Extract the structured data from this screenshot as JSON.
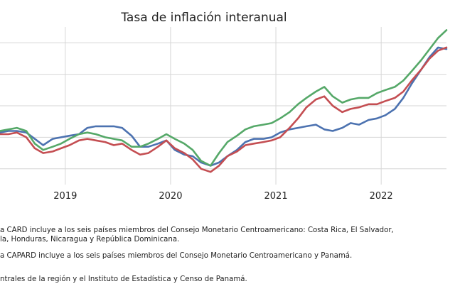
{
  "chart_data": {
    "type": "line",
    "title": "Tasa de inflación interanual",
    "xlabel": "",
    "ylabel": "",
    "x_ticks": [
      "2019",
      "2020",
      "2021",
      "2022"
    ],
    "x_range": [
      2018.38,
      2022.62
    ],
    "ylim": [
      -1,
      9
    ],
    "grid": true,
    "series": [
      {
        "color": "#4c72b0",
        "x": [
          2018.38,
          2018.46,
          2018.54,
          2018.63,
          2018.71,
          2018.79,
          2018.88,
          2018.96,
          2019.04,
          2019.13,
          2019.21,
          2019.29,
          2019.38,
          2019.46,
          2019.54,
          2019.63,
          2019.71,
          2019.79,
          2019.88,
          2019.96,
          2020.04,
          2020.13,
          2020.21,
          2020.29,
          2020.38,
          2020.46,
          2020.54,
          2020.63,
          2020.71,
          2020.79,
          2020.88,
          2020.96,
          2021.04,
          2021.13,
          2021.21,
          2021.29,
          2021.38,
          2021.46,
          2021.54,
          2021.63,
          2021.71,
          2021.79,
          2021.88,
          2021.96,
          2022.04,
          2022.13,
          2022.21,
          2022.29,
          2022.38,
          2022.46,
          2022.54,
          2022.62
        ],
        "values": [
          2.3,
          2.4,
          2.4,
          2.3,
          1.9,
          1.5,
          1.9,
          2.0,
          2.1,
          2.2,
          2.6,
          2.7,
          2.7,
          2.7,
          2.6,
          2.1,
          1.4,
          1.4,
          1.6,
          1.8,
          1.2,
          0.9,
          0.8,
          0.4,
          0.2,
          0.4,
          0.8,
          1.2,
          1.7,
          1.9,
          1.9,
          2.0,
          2.3,
          2.5,
          2.6,
          2.7,
          2.8,
          2.5,
          2.4,
          2.6,
          2.9,
          2.8,
          3.1,
          3.2,
          3.4,
          3.8,
          4.5,
          5.4,
          6.3,
          7.1,
          7.7,
          7.6
        ]
      },
      {
        "color": "#c44e52",
        "x": [
          2018.38,
          2018.46,
          2018.54,
          2018.63,
          2018.71,
          2018.79,
          2018.88,
          2018.96,
          2019.04,
          2019.13,
          2019.21,
          2019.29,
          2019.38,
          2019.46,
          2019.54,
          2019.63,
          2019.71,
          2019.79,
          2019.88,
          2019.96,
          2020.04,
          2020.13,
          2020.21,
          2020.29,
          2020.38,
          2020.46,
          2020.54,
          2020.63,
          2020.71,
          2020.79,
          2020.88,
          2020.96,
          2021.04,
          2021.13,
          2021.21,
          2021.29,
          2021.38,
          2021.46,
          2021.54,
          2021.63,
          2021.71,
          2021.79,
          2021.88,
          2021.96,
          2022.04,
          2022.13,
          2022.21,
          2022.29,
          2022.38,
          2022.46,
          2022.54,
          2022.62
        ],
        "values": [
          2.2,
          2.2,
          2.3,
          2.0,
          1.3,
          1.0,
          1.1,
          1.3,
          1.5,
          1.8,
          1.9,
          1.8,
          1.7,
          1.5,
          1.6,
          1.2,
          0.9,
          1.0,
          1.4,
          1.8,
          1.3,
          1.0,
          0.6,
          0.0,
          -0.2,
          0.2,
          0.8,
          1.1,
          1.5,
          1.6,
          1.7,
          1.8,
          2.0,
          2.6,
          3.2,
          3.9,
          4.4,
          4.6,
          4.0,
          3.6,
          3.8,
          3.9,
          4.1,
          4.1,
          4.3,
          4.5,
          4.9,
          5.6,
          6.3,
          7.0,
          7.5,
          7.7
        ]
      },
      {
        "color": "#55a868",
        "x": [
          2018.38,
          2018.46,
          2018.54,
          2018.63,
          2018.71,
          2018.79,
          2018.88,
          2018.96,
          2019.04,
          2019.13,
          2019.21,
          2019.29,
          2019.38,
          2019.46,
          2019.54,
          2019.63,
          2019.71,
          2019.79,
          2019.88,
          2019.96,
          2020.04,
          2020.13,
          2020.21,
          2020.29,
          2020.38,
          2020.46,
          2020.54,
          2020.63,
          2020.71,
          2020.79,
          2020.88,
          2020.96,
          2021.04,
          2021.13,
          2021.21,
          2021.29,
          2021.38,
          2021.46,
          2021.54,
          2021.63,
          2021.71,
          2021.79,
          2021.88,
          2021.96,
          2022.04,
          2022.13,
          2022.21,
          2022.29,
          2022.38,
          2022.46,
          2022.54,
          2022.62
        ],
        "values": [
          2.4,
          2.5,
          2.6,
          2.4,
          1.6,
          1.2,
          1.4,
          1.6,
          1.9,
          2.2,
          2.3,
          2.2,
          2.0,
          1.9,
          1.8,
          1.4,
          1.4,
          1.6,
          1.9,
          2.2,
          1.9,
          1.6,
          1.2,
          0.5,
          0.2,
          1.0,
          1.7,
          2.1,
          2.5,
          2.7,
          2.8,
          2.9,
          3.2,
          3.6,
          4.1,
          4.5,
          4.9,
          5.2,
          4.6,
          4.2,
          4.4,
          4.5,
          4.5,
          4.8,
          5.0,
          5.2,
          5.6,
          6.2,
          6.9,
          7.6,
          8.3,
          8.8
        ]
      }
    ]
  },
  "notes": [
    "a CARD incluye a los seis países miembros del Consejo Monetario Centroamericano: Costa Rica, El Salvador,",
    "la, Honduras, Nicaragua y República Dominicana.",
    "a CAPARD incluye a los seis países miembros del Consejo Monetario Centroamericano y Panamá.",
    "ntrales de la región y el Instituto de Estadística y Censo de Panamá."
  ]
}
